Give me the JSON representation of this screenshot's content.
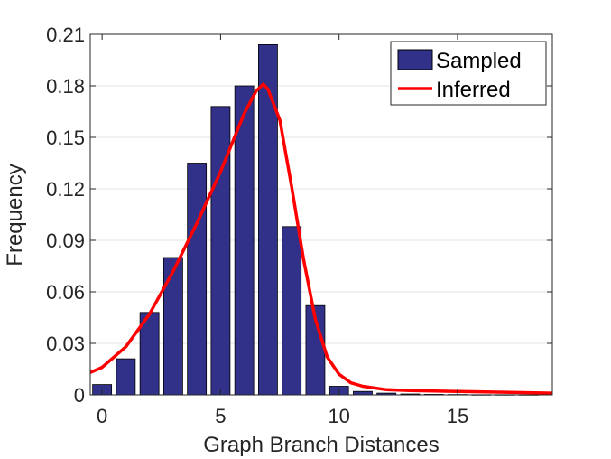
{
  "chart_data": {
    "type": "bar",
    "xlabel": "Graph Branch Distances",
    "ylabel": "Frequency",
    "xlim": [
      -0.5,
      19
    ],
    "ylim": [
      0,
      0.21
    ],
    "xticks": [
      0,
      5,
      10,
      15
    ],
    "yticks": [
      0,
      0.03,
      0.06,
      0.09,
      0.12,
      0.15,
      0.18,
      0.21
    ],
    "ytick_labels": [
      "0",
      "0.03",
      "0.06",
      "0.09",
      "0.12",
      "0.15",
      "0.18",
      "0.21"
    ],
    "grid": "horizontal",
    "legend_position": "top-right",
    "series": [
      {
        "name": "Sampled",
        "type": "bar",
        "color": "#32318a",
        "x": [
          0,
          1,
          2,
          3,
          4,
          5,
          6,
          7,
          8,
          9,
          10,
          11,
          12,
          13,
          14,
          15,
          16,
          17,
          18
        ],
        "values": [
          0.006,
          0.021,
          0.048,
          0.08,
          0.135,
          0.168,
          0.18,
          0.204,
          0.098,
          0.052,
          0.005,
          0.002,
          0.001,
          0.0005,
          0.0003,
          0.0002,
          0.0001,
          0.0001,
          0.0001
        ]
      },
      {
        "name": "Inferred",
        "type": "line",
        "color": "#ff0000",
        "x": [
          -0.5,
          0,
          1,
          2,
          3,
          4,
          5,
          5.5,
          6,
          6.5,
          6.8,
          7,
          7.5,
          8,
          8.5,
          9,
          9.5,
          10,
          10.5,
          11,
          12,
          13,
          15,
          17,
          19
        ],
        "values": [
          0.013,
          0.016,
          0.028,
          0.047,
          0.072,
          0.1,
          0.13,
          0.147,
          0.164,
          0.177,
          0.181,
          0.178,
          0.16,
          0.121,
          0.079,
          0.044,
          0.022,
          0.012,
          0.007,
          0.005,
          0.003,
          0.0025,
          0.002,
          0.0015,
          0.001
        ]
      }
    ]
  }
}
